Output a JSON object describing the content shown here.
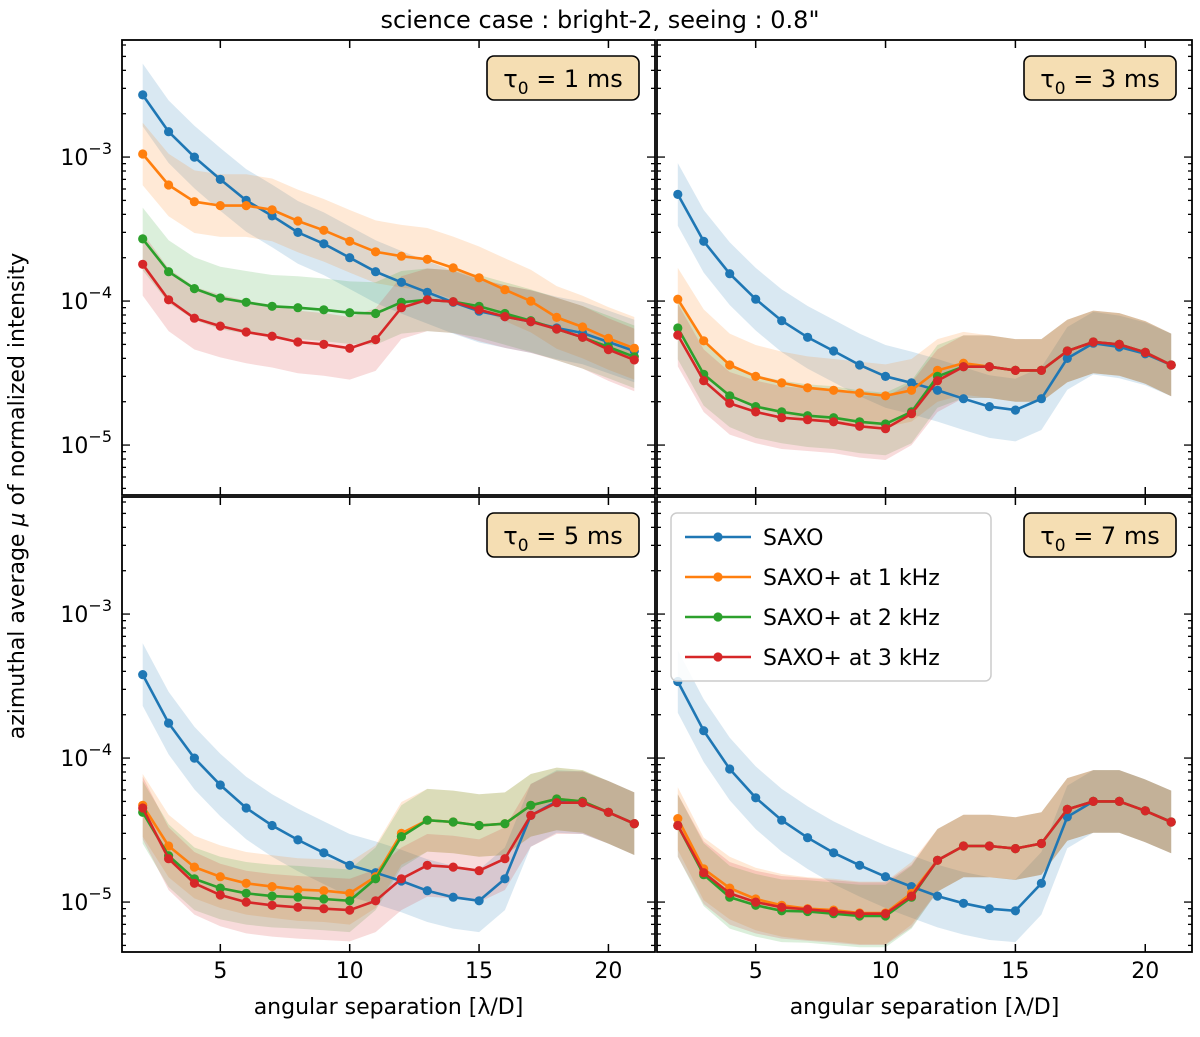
{
  "chart_data": {
    "type": "line",
    "title": "science case : bright-2, seeing : 0.8\"",
    "xlabel": "angular separation [λ/D]",
    "ylabel_prefix": "azimuthal average ",
    "ylabel_mu": "μ",
    "ylabel_suffix": " of normalized intensity",
    "yscale": "log",
    "ylim": [
      4.5e-06,
      0.0065
    ],
    "xlim": [
      1.2,
      21.8
    ],
    "xticks": [
      5,
      10,
      15,
      20
    ],
    "yticks": [
      {
        "value": 0.001,
        "base": "10",
        "exp": "−3"
      },
      {
        "value": 0.0001,
        "base": "10",
        "exp": "−4"
      },
      {
        "value": 1e-05,
        "base": "10",
        "exp": "−5"
      }
    ],
    "x": [
      2,
      3,
      4,
      5,
      6,
      7,
      8,
      9,
      10,
      11,
      12,
      13,
      14,
      15,
      16,
      17,
      18,
      19,
      20,
      21
    ],
    "series_names": [
      "SAXO",
      "SAXO+ at 1 kHz",
      "SAXO+ at 2 kHz",
      "SAXO+ at 3 kHz"
    ],
    "colors": [
      "#1f77b4",
      "#ff7f0e",
      "#2ca02c",
      "#d62728"
    ],
    "legend_location": "upper-left of bottom-right panel",
    "panels": [
      {
        "label_prefix": "τ",
        "label_sub": "0",
        "label_suffix": " = 1 ms",
        "series": [
          {
            "values": [
              0.0027,
              0.0015,
              0.001,
              0.0007,
              0.0005,
              0.00039,
              0.0003,
              0.00025,
              0.0002,
              0.00016,
              0.000135,
              0.000115,
              9.8e-05,
              8.5e-05,
              7.8e-05,
              7.2e-05,
              6.5e-05,
              6e-05,
              5.2e-05,
              4.5e-05
            ]
          },
          {
            "values": [
              0.00105,
              0.00064,
              0.00049,
              0.00046,
              0.00046,
              0.00043,
              0.00036,
              0.00031,
              0.00026,
              0.00022,
              0.000205,
              0.000195,
              0.00017,
              0.000145,
              0.00012,
              0.0001,
              7.7e-05,
              6.6e-05,
              5.5e-05,
              4.7e-05
            ]
          },
          {
            "values": [
              0.00027,
              0.00016,
              0.000122,
              0.000105,
              9.8e-05,
              9.2e-05,
              9e-05,
              8.7e-05,
              8.3e-05,
              8.2e-05,
              9.8e-05,
              0.000102,
              9.9e-05,
              9.2e-05,
              8.2e-05,
              7.3e-05,
              6.4e-05,
              5.6e-05,
              4.8e-05,
              4.1e-05
            ]
          },
          {
            "values": [
              0.00018,
              0.000102,
              7.6e-05,
              6.7e-05,
              6.1e-05,
              5.7e-05,
              5.2e-05,
              5e-05,
              4.7e-05,
              5.4e-05,
              9e-05,
              0.000102,
              9.9e-05,
              8.7e-05,
              7.8e-05,
              7.2e-05,
              6.4e-05,
              5.6e-05,
              4.6e-05,
              3.9e-05
            ]
          }
        ]
      },
      {
        "label_prefix": "τ",
        "label_sub": "0",
        "label_suffix": " = 3 ms",
        "series": [
          {
            "values": [
              0.00055,
              0.00026,
              0.000155,
              0.000103,
              7.3e-05,
              5.6e-05,
              4.5e-05,
              3.6e-05,
              3e-05,
              2.7e-05,
              2.4e-05,
              2.1e-05,
              1.85e-05,
              1.75e-05,
              2.1e-05,
              4e-05,
              5.1e-05,
              4.8e-05,
              4.3e-05,
              3.6e-05
            ]
          },
          {
            "values": [
              0.000103,
              5.3e-05,
              3.6e-05,
              3e-05,
              2.7e-05,
              2.5e-05,
              2.4e-05,
              2.3e-05,
              2.2e-05,
              2.4e-05,
              3.3e-05,
              3.7e-05,
              3.5e-05,
              3.3e-05,
              3.3e-05,
              4.5e-05,
              5.2e-05,
              5e-05,
              4.4e-05,
              3.6e-05
            ]
          },
          {
            "values": [
              6.5e-05,
              3.1e-05,
              2.2e-05,
              1.85e-05,
              1.7e-05,
              1.6e-05,
              1.55e-05,
              1.45e-05,
              1.4e-05,
              1.7e-05,
              3e-05,
              3.5e-05,
              3.5e-05,
              3.3e-05,
              3.3e-05,
              4.5e-05,
              5.2e-05,
              5e-05,
              4.4e-05,
              3.6e-05
            ]
          },
          {
            "values": [
              5.8e-05,
              2.8e-05,
              1.95e-05,
              1.7e-05,
              1.55e-05,
              1.5e-05,
              1.45e-05,
              1.35e-05,
              1.3e-05,
              1.65e-05,
              2.8e-05,
              3.5e-05,
              3.5e-05,
              3.3e-05,
              3.3e-05,
              4.5e-05,
              5.2e-05,
              5e-05,
              4.4e-05,
              3.6e-05
            ]
          }
        ]
      },
      {
        "label_prefix": "τ",
        "label_sub": "0",
        "label_suffix": " = 5 ms",
        "series": [
          {
            "values": [
              0.00038,
              0.000175,
              0.0001,
              6.5e-05,
              4.5e-05,
              3.4e-05,
              2.7e-05,
              2.2e-05,
              1.8e-05,
              1.6e-05,
              1.4e-05,
              1.2e-05,
              1.08e-05,
              1.02e-05,
              1.45e-05,
              4e-05,
              5e-05,
              4.9e-05,
              4.2e-05,
              3.5e-05
            ]
          },
          {
            "values": [
              4.7e-05,
              2.45e-05,
              1.75e-05,
              1.5e-05,
              1.35e-05,
              1.28e-05,
              1.22e-05,
              1.2e-05,
              1.15e-05,
              1.5e-05,
              3e-05,
              3.7e-05,
              3.6e-05,
              3.4e-05,
              3.5e-05,
              4.7e-05,
              5.2e-05,
              5e-05,
              4.2e-05,
              3.5e-05
            ]
          },
          {
            "values": [
              4.2e-05,
              2.1e-05,
              1.45e-05,
              1.25e-05,
              1.15e-05,
              1.1e-05,
              1.08e-05,
              1.05e-05,
              1.02e-05,
              1.45e-05,
              2.85e-05,
              3.7e-05,
              3.6e-05,
              3.4e-05,
              3.5e-05,
              4.7e-05,
              5.2e-05,
              5e-05,
              4.2e-05,
              3.5e-05
            ]
          },
          {
            "values": [
              4.5e-05,
              2e-05,
              1.35e-05,
              1.12e-05,
              1e-05,
              9.5e-06,
              9.2e-06,
              9e-06,
              8.8e-06,
              1.02e-05,
              1.45e-05,
              1.8e-05,
              1.75e-05,
              1.65e-05,
              2e-05,
              4e-05,
              4.9e-05,
              4.9e-05,
              4.2e-05,
              3.5e-05
            ]
          }
        ]
      },
      {
        "label_prefix": "τ",
        "label_sub": "0",
        "label_suffix": " = 7 ms",
        "series": [
          {
            "values": [
              0.00034,
              0.000155,
              8.4e-05,
              5.3e-05,
              3.7e-05,
              2.8e-05,
              2.2e-05,
              1.8e-05,
              1.5e-05,
              1.28e-05,
              1.1e-05,
              9.8e-06,
              9e-06,
              8.7e-06,
              1.35e-05,
              3.9e-05,
              5e-05,
              5e-05,
              4.3e-05,
              3.6e-05
            ]
          },
          {
            "values": [
              3.8e-05,
              1.7e-05,
              1.25e-05,
              1.05e-05,
              9.5e-06,
              9e-06,
              8.8e-06,
              8.4e-06,
              8.4e-06,
              1.15e-05,
              1.95e-05,
              2.45e-05,
              2.45e-05,
              2.35e-05,
              2.55e-05,
              4.4e-05,
              5e-05,
              5e-05,
              4.3e-05,
              3.6e-05
            ]
          },
          {
            "values": [
              3.4e-05,
              1.55e-05,
              1.08e-05,
              9.5e-06,
              8.7e-06,
              8.6e-06,
              8.3e-06,
              8e-06,
              8e-06,
              1.08e-05,
              1.95e-05,
              2.45e-05,
              2.45e-05,
              2.35e-05,
              2.55e-05,
              4.4e-05,
              5e-05,
              5e-05,
              4.3e-05,
              3.6e-05
            ]
          },
          {
            "values": [
              3.4e-05,
              1.6e-05,
              1.15e-05,
              1e-05,
              9.2e-06,
              8.9e-06,
              8.6e-06,
              8.3e-06,
              8.3e-06,
              1.1e-05,
              1.95e-05,
              2.45e-05,
              2.45e-05,
              2.35e-05,
              2.55e-05,
              4.4e-05,
              5e-05,
              5e-05,
              4.3e-05,
              3.6e-05
            ]
          }
        ]
      }
    ]
  }
}
